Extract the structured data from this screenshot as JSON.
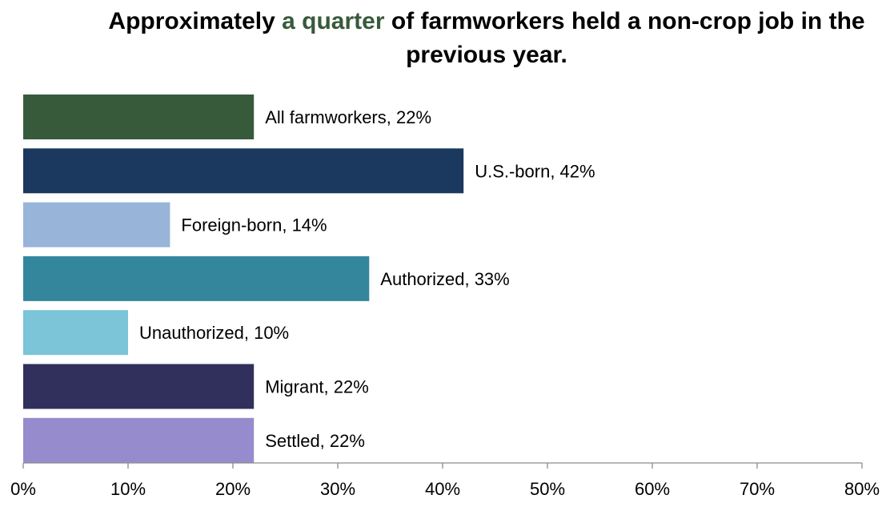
{
  "chart_data": {
    "type": "bar",
    "orientation": "horizontal",
    "title_parts": {
      "before": "Approximately ",
      "highlight": "a quarter",
      "after": " of farmworkers held a non-crop job in the previous year."
    },
    "categories": [
      "All farmworkers",
      "U.S.-born",
      "Foreign-born",
      "Authorized",
      "Unauthorized",
      "Migrant",
      "Settled"
    ],
    "values": [
      22,
      42,
      14,
      33,
      10,
      22,
      22
    ],
    "data_labels": [
      "All farmworkers, 22%",
      "U.S.-born, 42%",
      "Foreign-born, 14%",
      "Authorized, 33%",
      "Unauthorized, 10%",
      "Migrant, 22%",
      "Settled, 22%"
    ],
    "colors": [
      "#375a3b",
      "#1b385e",
      "#98b4d8",
      "#33869c",
      "#7cc4d8",
      "#312f5b",
      "#968bcc"
    ],
    "xlim": [
      0,
      80
    ],
    "x_ticks": [
      "0%",
      "10%",
      "20%",
      "30%",
      "40%",
      "50%",
      "60%",
      "70%",
      "80%"
    ],
    "xlabel": "",
    "ylabel": "",
    "grid": false,
    "legend": "none",
    "accent_color": "#375a3b"
  }
}
